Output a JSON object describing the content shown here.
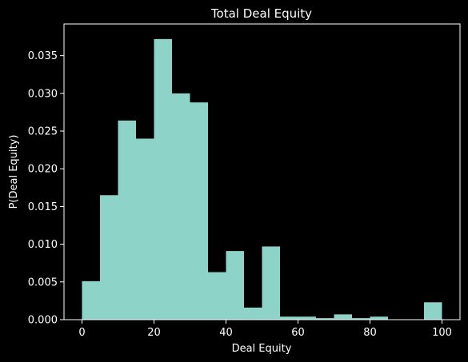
{
  "chart_data": {
    "type": "bar",
    "title": "Total Deal Equity",
    "xlabel": "Deal Equity",
    "ylabel": "P(Deal Equity)",
    "xlim": [
      -5,
      105
    ],
    "ylim": [
      0,
      0.0392
    ],
    "x_ticks": [
      "0",
      "20",
      "40",
      "60",
      "80",
      "100"
    ],
    "y_ticks": [
      "0.000",
      "0.005",
      "0.010",
      "0.015",
      "0.020",
      "0.025",
      "0.030",
      "0.035"
    ],
    "bin_edges": [
      0,
      5,
      10,
      15,
      20,
      25,
      30,
      35,
      40,
      45,
      50,
      55,
      60,
      65,
      70,
      75,
      80,
      85,
      90,
      95,
      100
    ],
    "values": [
      0.0051,
      0.0165,
      0.0264,
      0.024,
      0.0372,
      0.03,
      0.0288,
      0.0063,
      0.0091,
      0.0016,
      0.0097,
      0.0004,
      0.0004,
      0.0002,
      0.0007,
      0.0002,
      0.0004,
      0.0,
      0.0,
      0.0023
    ],
    "bar_color": "#8dd3c7",
    "background": "#000000",
    "axis_color": "#ffffff",
    "grid": false
  }
}
